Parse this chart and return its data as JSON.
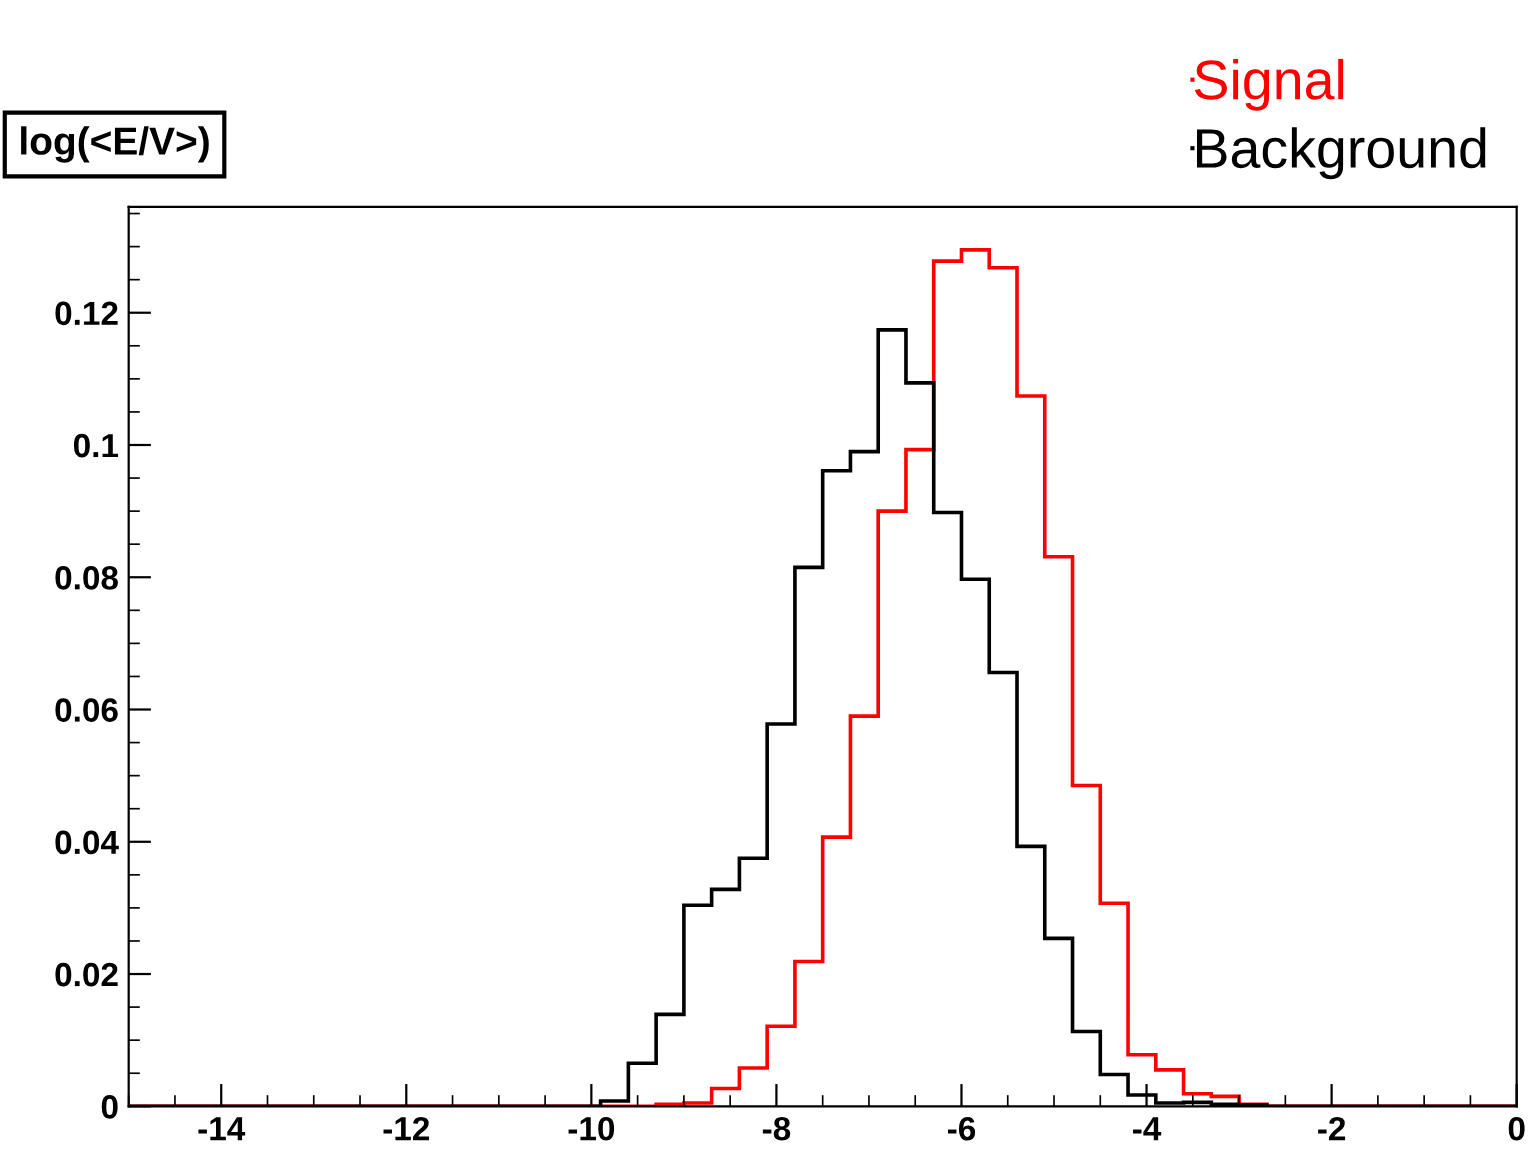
{
  "chart_data": {
    "type": "histogram",
    "title": "log(<E/V>)",
    "bins": [
      -15,
      -14.7,
      -14.4,
      -14.1,
      -13.8,
      -13.5,
      -13.2,
      -12.9,
      -12.6,
      -12.3,
      -12,
      -11.7,
      -11.4,
      -11.1,
      -10.8,
      -10.5,
      -10.2,
      -9.9,
      -9.6,
      -9.3,
      -9,
      -8.7,
      -8.4,
      -8.1,
      -7.8,
      -7.5,
      -7.2,
      -6.9,
      -6.6,
      -6.3,
      -6,
      -5.7,
      -5.4,
      -5.1,
      -4.8,
      -4.5,
      -4.2,
      -3.9,
      -3.6,
      -3.3,
      -3,
      -2.7,
      -2.4,
      -2.1,
      -1.8,
      -1.5,
      -1.2,
      -0.9,
      -0.6,
      -0.3,
      0
    ],
    "series": [
      {
        "name": "Signal",
        "color": "#ff0000",
        "values": [
          0,
          0,
          0,
          0,
          0,
          0,
          0,
          0,
          0,
          0,
          0,
          0,
          0,
          0,
          0,
          0,
          0,
          0,
          0,
          0.0003,
          0.0005,
          0.0027,
          0.0058,
          0.0121,
          0.0219,
          0.0407,
          0.059,
          0.09,
          0.0993,
          0.1278,
          0.1295,
          0.1268,
          0.1074,
          0.0831,
          0.0485,
          0.0307,
          0.0078,
          0.0055,
          0.0019,
          0.0015,
          0.0003,
          0,
          0,
          0,
          0,
          0,
          0,
          0,
          0,
          0
        ]
      },
      {
        "name": "Background",
        "color": "#000000",
        "values": [
          0,
          0,
          0,
          0,
          0,
          0,
          0,
          0,
          0,
          0,
          0,
          0,
          0,
          0,
          0,
          0,
          0,
          0.0008,
          0.0065,
          0.0139,
          0.0304,
          0.0328,
          0.0375,
          0.0578,
          0.0815,
          0.0961,
          0.099,
          0.1174,
          0.1094,
          0.0898,
          0.0797,
          0.0656,
          0.0393,
          0.0254,
          0.0113,
          0.0048,
          0.0017,
          0.0005,
          0.0006,
          0.0003,
          0.0002,
          0,
          0,
          0,
          0,
          0,
          0,
          0,
          0,
          0
        ]
      }
    ],
    "xlim": [
      -15,
      0
    ],
    "ylim": [
      0,
      0.136
    ],
    "xticks": [
      -14,
      -12,
      -10,
      -8,
      -6,
      -4,
      -2,
      0
    ],
    "yticks": [
      0,
      0.02,
      0.04,
      0.06,
      0.08,
      0.1,
      0.12
    ],
    "grid": false,
    "legend": "top right"
  }
}
